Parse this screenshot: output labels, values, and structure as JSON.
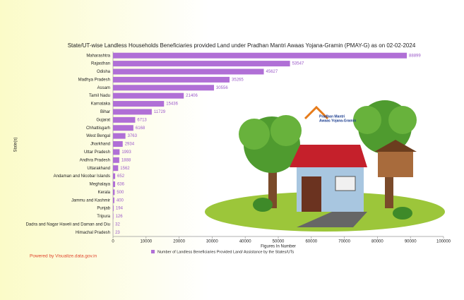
{
  "chart_data": {
    "type": "bar",
    "orientation": "horizontal",
    "title": "State/UT-wise Landless Households Beneficiaries provided Land under Pradhan Mantri Awaas Yojana-Gramin (PMAY-G) as on 02-02-2024",
    "xlabel": "Figures In Number",
    "ylabel": "State(s)",
    "categories": [
      "Maharashtra",
      "Rajasthan",
      "Odisha",
      "Madhya Pradesh",
      "Assam",
      "Tamil Nadu",
      "Karnataka",
      "Bihar",
      "Gujarat",
      "Chhattisgarh",
      "West Bengal",
      "Jharkhand",
      "Uttar Pradesh",
      "Andhra Pradesh",
      "Uttarakhand",
      "Andaman and Nicobar Islands",
      "Meghalaya",
      "Kerala",
      "Jammu and Kashmir",
      "Punjab",
      "Tripura",
      "Dadra and Nagar Haveli and Daman and Diu",
      "Himachal Pradesh"
    ],
    "series": [
      {
        "name": "Number of Landless Beneficiaries Provided Land/ Assistance by the States/UTs",
        "color": "#b06fd6",
        "values": [
          88899,
          53547,
          45627,
          35265,
          30556,
          21406,
          15436,
          11729,
          6713,
          6168,
          3763,
          2934,
          1993,
          1888,
          1562,
          652,
          636,
          500,
          400,
          194,
          126,
          32,
          23
        ]
      }
    ],
    "xlim": [
      0,
      100000
    ],
    "xticks": [
      0,
      10000,
      20000,
      30000,
      40000,
      50000,
      60000,
      70000,
      80000,
      90000,
      100000
    ],
    "footer": "Powered by Visualize.data.gov.in",
    "logo_line1": "Pradhan Mantri",
    "logo_line2": "Awaas Yojana-Gramin"
  }
}
